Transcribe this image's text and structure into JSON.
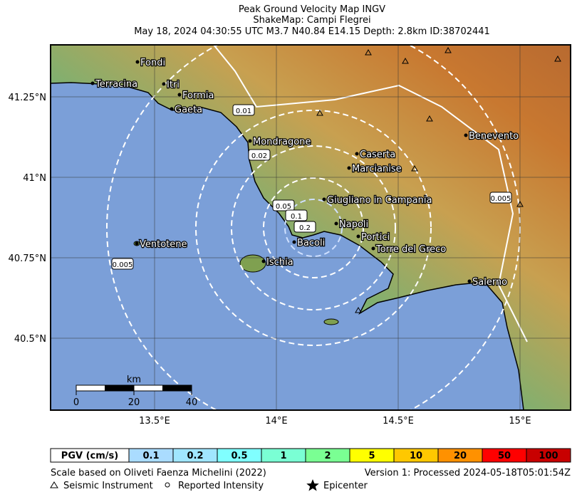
{
  "title": {
    "line1": "Peak Ground Velocity Map INGV",
    "line2": "ShakeMap: Campi Flegrei",
    "line3": "May 18, 2024 04:30:55 UTC M3.7 N40.84 E14.15 Depth: 2.8km ID:38702441"
  },
  "map": {
    "lat_ticks": [
      {
        "value": 41.25,
        "label": "41.25°N"
      },
      {
        "value": 41,
        "label": "41°N"
      },
      {
        "value": 40.75,
        "label": "40.75°N"
      },
      {
        "value": 40.5,
        "label": "40.5°N"
      }
    ],
    "lon_ticks": [
      {
        "value": 13.5,
        "label": "13.5°E"
      },
      {
        "value": 14,
        "label": "14°E"
      },
      {
        "value": 14.5,
        "label": "14.5°E"
      },
      {
        "value": 15,
        "label": "15°E"
      }
    ],
    "cities": [
      "Fondi",
      "Terracina",
      "Itri",
      "Formia",
      "Gaeta",
      "Mondragone",
      "Caserta",
      "Marcianise",
      "Benevento",
      "Giugliano in Campania",
      "Napoli",
      "Bacoli",
      "Portici",
      "Torre del Greco",
      "Ventotene",
      "Ischia",
      "Salerno"
    ],
    "contour_labels": [
      0.01,
      0.02,
      0.05,
      0.1,
      0.2,
      0.005,
      0.005
    ]
  },
  "scale_bar": {
    "unit": "km",
    "ticks": [
      0,
      20,
      40
    ]
  },
  "legend": {
    "label": "PGV (cm/s)",
    "bins": [
      0.1,
      0.2,
      0.5,
      1,
      2,
      5,
      10,
      20,
      50,
      100
    ],
    "colors": [
      "#aadcff",
      "#a0e6ff",
      "#80ffff",
      "#7affd4",
      "#7aff93",
      "#ffff00",
      "#ffc800",
      "#ff9100",
      "#ff0000",
      "#c80000"
    ]
  },
  "footer": {
    "scale_note": "Scale based on Oliveti Faenza Michelini (2022)",
    "version": "Version 1: Processed 2024-05-18T05:01:54Z",
    "instrument": "Seismic Instrument",
    "intensity": "Reported Intensity",
    "epicenter": "Epicenter"
  }
}
